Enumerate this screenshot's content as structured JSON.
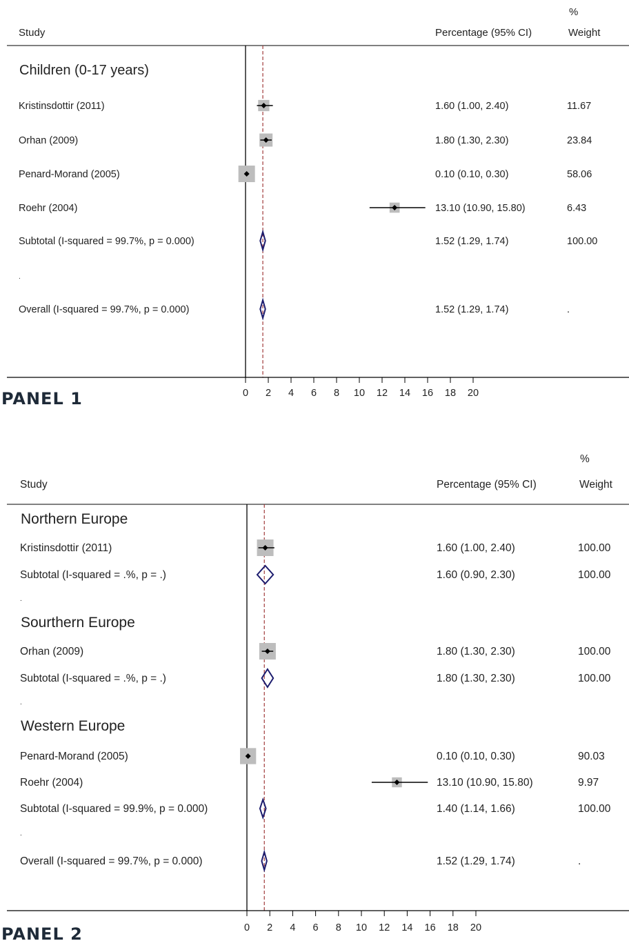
{
  "chart_data": [
    {
      "type": "forest",
      "panel_label": "PANEL 1",
      "headers": {
        "study": "Study",
        "ci": "Percentage (95% CI)",
        "weight_line1": "%",
        "weight_line2": "Weight"
      },
      "xlim": [
        0,
        20
      ],
      "xticks": [
        0,
        2,
        4,
        6,
        8,
        10,
        12,
        14,
        16,
        18,
        20
      ],
      "overall_reference": 1.52,
      "rows": [
        {
          "kind": "group",
          "label": "Children (0-17 years)"
        },
        {
          "kind": "study",
          "label": "Kristinsdottir (2011)",
          "est": 1.6,
          "lo": 1.0,
          "hi": 2.4,
          "ci_text": "1.60 (1.00, 2.40)",
          "weight": "11.67",
          "w": 11.67
        },
        {
          "kind": "study",
          "label": "Orhan (2009)",
          "est": 1.8,
          "lo": 1.3,
          "hi": 2.3,
          "ci_text": "1.80 (1.30, 2.30)",
          "weight": "23.84",
          "w": 23.84
        },
        {
          "kind": "study",
          "label": "Penard-Morand (2005)",
          "est": 0.1,
          "lo": 0.1,
          "hi": 0.3,
          "ci_text": "0.10 (0.10, 0.30)",
          "weight": "58.06",
          "w": 58.06
        },
        {
          "kind": "study",
          "label": "Roehr (2004)",
          "est": 13.1,
          "lo": 10.9,
          "hi": 15.8,
          "ci_text": "13.10 (10.90, 15.80)",
          "weight": "6.43",
          "w": 6.43
        },
        {
          "kind": "subtotal",
          "label": "Subtotal  (I-squared = 99.7%, p = 0.000)",
          "est": 1.52,
          "lo": 1.29,
          "hi": 1.74,
          "ci_text": "1.52 (1.29, 1.74)",
          "weight": "100.00"
        },
        {
          "kind": "dot",
          "label": "."
        },
        {
          "kind": "overall",
          "label": "Overall  (I-squared = 99.7%, p = 0.000)",
          "est": 1.52,
          "lo": 1.29,
          "hi": 1.74,
          "ci_text": "1.52 (1.29, 1.74)",
          "weight": "."
        }
      ]
    },
    {
      "type": "forest",
      "panel_label": "PANEL 2",
      "headers": {
        "study": "Study",
        "ci": "Percentage (95% CI)",
        "weight_line1": "%",
        "weight_line2": "Weight"
      },
      "xlim": [
        0,
        20
      ],
      "xticks": [
        0,
        2,
        4,
        6,
        8,
        10,
        12,
        14,
        16,
        18,
        20
      ],
      "overall_reference": 1.52,
      "rows": [
        {
          "kind": "group",
          "label": "Northern Europe"
        },
        {
          "kind": "study",
          "label": "Kristinsdottir (2011)",
          "est": 1.6,
          "lo": 1.0,
          "hi": 2.4,
          "ci_text": "1.60 (1.00, 2.40)",
          "weight": "100.00",
          "w": 100
        },
        {
          "kind": "subtotal",
          "label": "Subtotal  (I-squared = .%, p = .)",
          "est": 1.6,
          "lo": 0.9,
          "hi": 2.3,
          "ci_text": "1.60 (0.90, 2.30)",
          "weight": "100.00"
        },
        {
          "kind": "dot",
          "label": "."
        },
        {
          "kind": "group",
          "label": "Sourthern Europe"
        },
        {
          "kind": "study",
          "label": "Orhan (2009)",
          "est": 1.8,
          "lo": 1.3,
          "hi": 2.3,
          "ci_text": "1.80 (1.30, 2.30)",
          "weight": "100.00",
          "w": 100
        },
        {
          "kind": "subtotal",
          "label": "Subtotal  (I-squared = .%, p = .)",
          "est": 1.8,
          "lo": 1.3,
          "hi": 2.3,
          "ci_text": "1.80 (1.30, 2.30)",
          "weight": "100.00"
        },
        {
          "kind": "dot",
          "label": "."
        },
        {
          "kind": "group",
          "label": "Western Europe"
        },
        {
          "kind": "study",
          "label": "Penard-Morand (2005)",
          "est": 0.1,
          "lo": 0.1,
          "hi": 0.3,
          "ci_text": "0.10 (0.10, 0.30)",
          "weight": "90.03",
          "w": 90.03
        },
        {
          "kind": "study",
          "label": "Roehr (2004)",
          "est": 13.1,
          "lo": 10.9,
          "hi": 15.8,
          "ci_text": "13.10 (10.90, 15.80)",
          "weight": "9.97",
          "w": 9.97
        },
        {
          "kind": "subtotal",
          "label": "Subtotal  (I-squared = 99.9%, p = 0.000)",
          "est": 1.4,
          "lo": 1.14,
          "hi": 1.66,
          "ci_text": "1.40 (1.14, 1.66)",
          "weight": "100.00"
        },
        {
          "kind": "dot",
          "label": "."
        },
        {
          "kind": "overall",
          "label": "Overall  (I-squared = 99.7%, p = 0.000)",
          "est": 1.52,
          "lo": 1.29,
          "hi": 1.74,
          "ci_text": "1.52 (1.29, 1.74)",
          "weight": "."
        }
      ]
    }
  ],
  "colors": {
    "diamond": "#1c1c6e",
    "reference_line": "#a03a3a",
    "weight_box": "#bdbdbd",
    "axis": "#000000",
    "text": "#222222"
  }
}
